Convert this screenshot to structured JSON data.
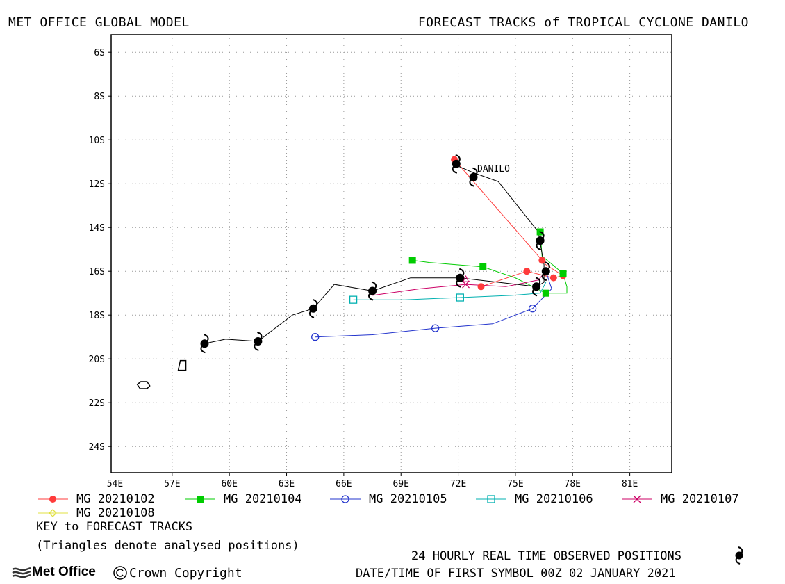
{
  "header": {
    "left": "MET OFFICE GLOBAL MODEL",
    "right": "FORECAST TRACKS of TROPICAL CYCLONE DANILO"
  },
  "chart_data": {
    "type": "line",
    "title": "FORECAST TRACKS of TROPICAL CYCLONE DANILO",
    "xlim": [
      53.8,
      83.2
    ],
    "ylim": [
      -25.2,
      -5.2
    ],
    "x_ticks": [
      54,
      57,
      60,
      63,
      66,
      69,
      72,
      75,
      78,
      81
    ],
    "x_tick_labels": [
      "54E",
      "57E",
      "60E",
      "63E",
      "66E",
      "69E",
      "72E",
      "75E",
      "78E",
      "81E"
    ],
    "y_ticks": [
      -6,
      -8,
      -10,
      -12,
      -14,
      -16,
      -18,
      -20,
      -22,
      -24
    ],
    "y_tick_labels": [
      "6S",
      "8S",
      "10S",
      "12S",
      "14S",
      "16S",
      "18S",
      "20S",
      "22S",
      "24S"
    ],
    "grid": true,
    "observed_track": {
      "label": "DANILO",
      "line_points": [
        [
          72.0,
          -11.2
        ],
        [
          72.8,
          -11.5
        ],
        [
          74.1,
          -11.9
        ],
        [
          76.2,
          -14.2
        ],
        [
          76.5,
          -15.7
        ],
        [
          76.5,
          -16.5
        ],
        [
          76.1,
          -16.7
        ],
        [
          72.1,
          -16.3
        ],
        [
          69.5,
          -16.3
        ],
        [
          67.5,
          -16.9
        ],
        [
          65.5,
          -16.6
        ],
        [
          64.4,
          -17.7
        ],
        [
          63.3,
          -18.0
        ],
        [
          61.5,
          -19.2
        ],
        [
          59.8,
          -19.1
        ],
        [
          58.7,
          -19.3
        ]
      ],
      "cyclone_symbols": [
        [
          71.9,
          -11.1
        ],
        [
          72.8,
          -11.7
        ],
        [
          76.3,
          -14.6
        ],
        [
          76.6,
          -16.0
        ],
        [
          76.1,
          -16.7
        ],
        [
          72.1,
          -16.3
        ],
        [
          67.5,
          -16.9
        ],
        [
          64.4,
          -17.7
        ],
        [
          61.5,
          -19.2
        ],
        [
          58.7,
          -19.3
        ]
      ],
      "later_positions": [
        [
          57.5,
          -20.3
        ],
        [
          55.5,
          -21.2
        ]
      ]
    },
    "series": [
      {
        "name": "MG 20210102",
        "color": "#ff3b3b",
        "marker": "filled-circle",
        "points": [
          [
            71.8,
            -10.9
          ],
          [
            76.4,
            -15.5
          ],
          [
            76.6,
            -15.7
          ],
          [
            77.5,
            -16.2
          ],
          [
            77.0,
            -16.3
          ],
          [
            75.6,
            -16.0
          ],
          [
            73.2,
            -16.7
          ]
        ],
        "marker_points": [
          [
            71.8,
            -10.9
          ],
          [
            76.4,
            -15.5
          ],
          [
            77.5,
            -16.2
          ],
          [
            77.0,
            -16.3
          ],
          [
            75.6,
            -16.0
          ],
          [
            73.2,
            -16.7
          ]
        ]
      },
      {
        "name": "MG 20210104",
        "color": "#00cc00",
        "marker": "filled-square",
        "points": [
          [
            76.3,
            -14.2
          ],
          [
            76.4,
            -15.3
          ],
          [
            77.5,
            -16.1
          ],
          [
            77.7,
            -16.7
          ],
          [
            77.7,
            -17.0
          ],
          [
            76.6,
            -17.0
          ],
          [
            75.0,
            -16.3
          ],
          [
            73.3,
            -15.8
          ],
          [
            70.5,
            -15.6
          ],
          [
            69.6,
            -15.5
          ]
        ],
        "marker_points": [
          [
            76.3,
            -14.2
          ],
          [
            77.5,
            -16.1
          ],
          [
            76.6,
            -17.0
          ],
          [
            73.3,
            -15.8
          ],
          [
            69.6,
            -15.5
          ]
        ]
      },
      {
        "name": "MG 20210105",
        "color": "#2233cc",
        "marker": "open-circle",
        "points": [
          [
            76.6,
            -16.0
          ],
          [
            76.9,
            -16.8
          ],
          [
            75.9,
            -17.7
          ],
          [
            73.8,
            -18.4
          ],
          [
            70.8,
            -18.6
          ],
          [
            67.5,
            -18.9
          ],
          [
            64.5,
            -19.0
          ]
        ],
        "marker_points": [
          [
            75.9,
            -17.7
          ],
          [
            70.8,
            -18.6
          ],
          [
            64.5,
            -19.0
          ]
        ]
      },
      {
        "name": "MG 20210106",
        "color": "#00b0b0",
        "marker": "open-square",
        "points": [
          [
            76.6,
            -16.5
          ],
          [
            76.3,
            -17.0
          ],
          [
            74.8,
            -17.1
          ],
          [
            72.1,
            -17.2
          ],
          [
            69.2,
            -17.3
          ],
          [
            66.5,
            -17.3
          ]
        ],
        "marker_points": [
          [
            72.1,
            -17.2
          ],
          [
            66.5,
            -17.3
          ]
        ]
      },
      {
        "name": "MG 20210107",
        "color": "#cc0066",
        "marker": "x",
        "points": [
          [
            76.6,
            -16.0
          ],
          [
            76.2,
            -16.4
          ],
          [
            74.5,
            -16.7
          ],
          [
            72.4,
            -16.6
          ],
          [
            70.0,
            -16.8
          ],
          [
            67.5,
            -17.1
          ]
        ],
        "marker_points": [
          [
            72.4,
            -16.6
          ]
        ]
      },
      {
        "name": "MG 20210108",
        "color": "#e0e040",
        "marker": "open-diamond",
        "points": [],
        "marker_points": []
      }
    ]
  },
  "legend": {
    "key_title": "KEY to FORECAST TRACKS",
    "note": "(Triangles denote analysed positions)"
  },
  "footer": {
    "observed": "24 HOURLY REAL TIME OBSERVED POSITIONS",
    "date_line": "DATE/TIME OF FIRST SYMBOL 00Z 02 JANUARY 2021",
    "logo_text": "Met Office",
    "copyright": "Crown Copyright"
  }
}
